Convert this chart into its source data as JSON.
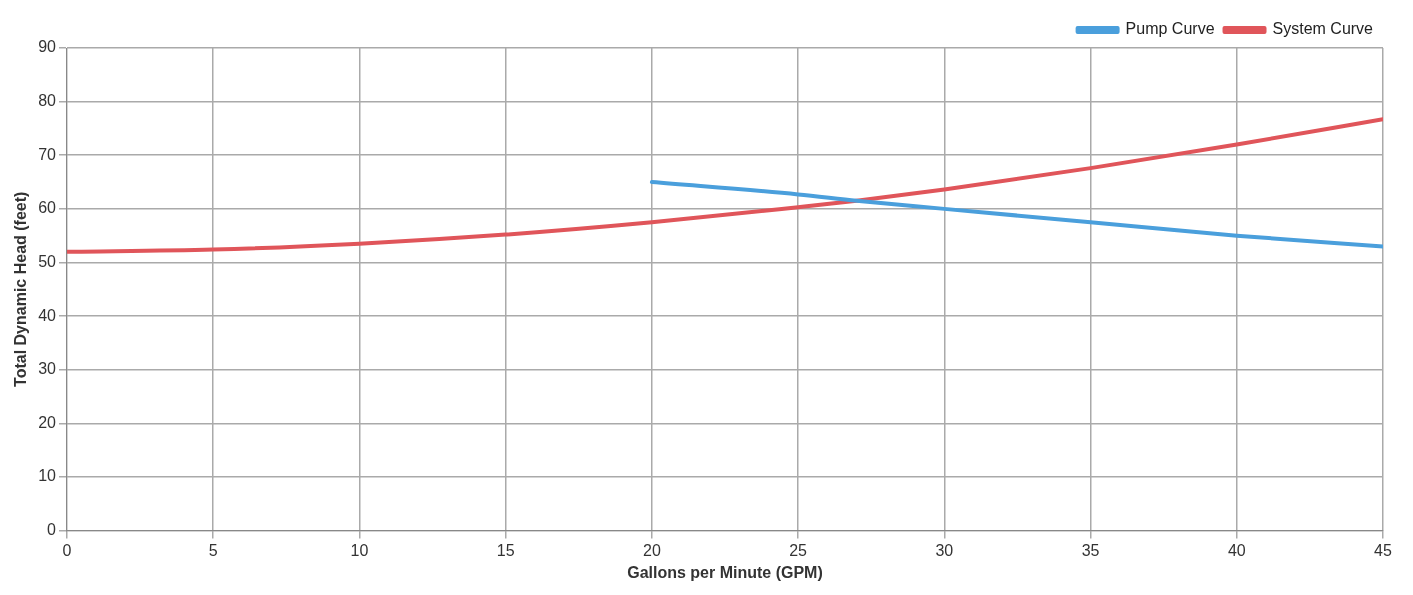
{
  "chart_data": {
    "type": "line",
    "xlabel": "Gallons per Minute (GPM)",
    "ylabel": "Total Dynamic Head (feet)",
    "xlim": [
      0,
      45
    ],
    "xticks": [
      0,
      5,
      10,
      15,
      20,
      25,
      30,
      35,
      40,
      45
    ],
    "ylim": [
      0,
      90
    ],
    "yticks": [
      0,
      10,
      20,
      30,
      40,
      50,
      60,
      70,
      80,
      90
    ],
    "grid": true,
    "legend": "top right",
    "marker": "none",
    "line_style": "solid",
    "series": [
      {
        "name": "Pump Curve",
        "color": "#4a9fdc",
        "x": [
          20,
          25,
          27,
          30,
          35,
          40,
          45
        ],
        "values": [
          65,
          62.7,
          61.5,
          60,
          57.5,
          55,
          53
        ]
      },
      {
        "name": "System Curve",
        "color": "#e0555a",
        "x": [
          0,
          5,
          10,
          15,
          20,
          25,
          27,
          30,
          35,
          40,
          45
        ],
        "values": [
          52,
          52.4,
          53.5,
          55.2,
          57.5,
          60.3,
          61.5,
          63.6,
          67.6,
          72,
          76.7
        ]
      }
    ]
  }
}
